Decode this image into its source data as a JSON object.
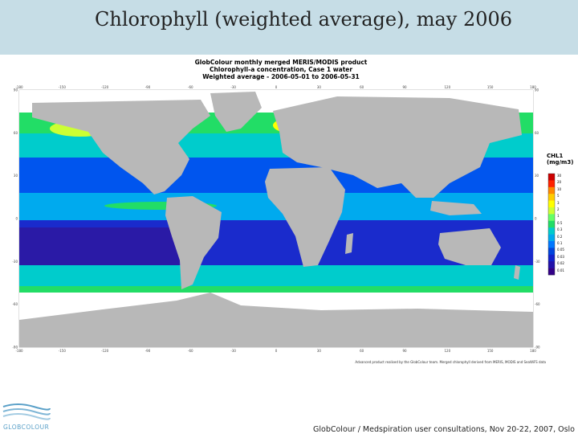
{
  "slide": {
    "title": "Chlorophyll (weighted average), may 2006",
    "footer": "GlobColour / Medspiration user consultations, Nov 20-22, 2007, Oslo"
  },
  "map": {
    "header_lines": [
      "GlobColour monthly merged MERIS/MODIS product",
      "Chlorophyll-a concentration, Case 1 water",
      "Weighted average - 2006-05-01 to 2006-05-31"
    ],
    "longitude_ticks": [
      "-180",
      "-150",
      "-120",
      "-90",
      "-60",
      "-30",
      "0",
      "30",
      "60",
      "90",
      "120",
      "150",
      "180"
    ],
    "latitude_ticks": [
      "90",
      "60",
      "30",
      "0",
      "-30",
      "-60",
      "-90"
    ],
    "credit": "Advanced product realised by the GlobColour team. Merged chlorophyll derived from MERIS, MODIS and SeaWiFS data"
  },
  "legend": {
    "title_lines": [
      "CHL1",
      "(mg/m3)"
    ],
    "labels": [
      "30",
      "20",
      "10",
      "5",
      "3",
      "2",
      "1",
      "0.5",
      "0.3",
      "0.2",
      "0.1",
      "0.05",
      "0.03",
      "0.02",
      "0.01"
    ],
    "colors": [
      "#cc0000",
      "#ff2200",
      "#ff8800",
      "#ffcc00",
      "#ffff00",
      "#ccff33",
      "#66ff66",
      "#22dd66",
      "#00cccc",
      "#00aaee",
      "#0077ff",
      "#0044dd",
      "#1122cc",
      "#2211aa",
      "#330088"
    ]
  },
  "colors": {
    "land": "#b8b8b8",
    "no_data": "#ffffff",
    "header_band": "#c6dde6",
    "logo_blue": "#5aa0c8"
  },
  "logo": {
    "text": "GLOBCOLOUR"
  }
}
